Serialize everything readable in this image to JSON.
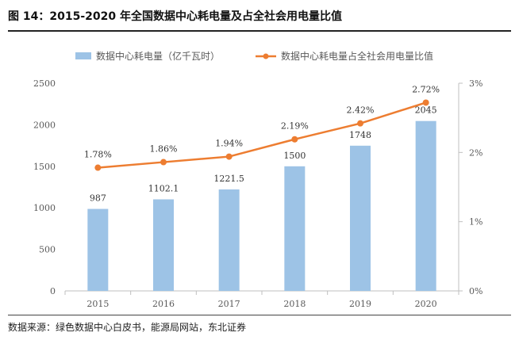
{
  "figure": {
    "title": "图 14：2015-2020 年全国数据中心耗电量及占全社会用电量比值",
    "source": "数据来源：绿色数据中心白皮书，能源局网站，东北证券"
  },
  "colors": {
    "bar": "#9dc3e6",
    "line": "#ed7d31",
    "axis": "#bfbfbf",
    "text": "#595959"
  },
  "chart_data": {
    "type": "bar",
    "categories": [
      "2015",
      "2016",
      "2017",
      "2018",
      "2019",
      "2020"
    ],
    "series": [
      {
        "name": "数据中心耗电量（亿千瓦时）",
        "type": "bar",
        "axis": "left",
        "values": [
          987,
          1102.1,
          1221.5,
          1500,
          1748,
          2045
        ],
        "labels": [
          "987",
          "1102.1",
          "1221.5",
          "1500",
          "1748",
          "2045"
        ]
      },
      {
        "name": "数据中心耗电量占全社会用电量比值",
        "type": "line",
        "axis": "right",
        "values": [
          1.78,
          1.86,
          1.94,
          2.19,
          2.42,
          2.72
        ],
        "labels": [
          "1.78%",
          "1.86%",
          "1.94%",
          "2.19%",
          "2.42%",
          "2.72%"
        ]
      }
    ],
    "y_left": {
      "min": 0,
      "max": 2500,
      "ticks": [
        "0",
        "500",
        "1000",
        "1500",
        "2000",
        "2500"
      ]
    },
    "y_right": {
      "min": 0,
      "max": 3,
      "ticks": [
        "0%",
        "1%",
        "2%",
        "3%"
      ]
    },
    "legend": "top",
    "grid": false
  }
}
